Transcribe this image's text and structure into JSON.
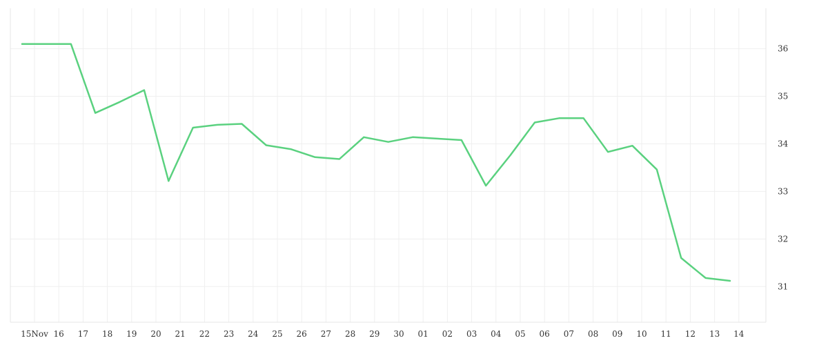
{
  "chart_data": {
    "type": "line",
    "title": "",
    "xlabel": "",
    "ylabel": "",
    "x_tick_labels": [
      "15Nov",
      "16",
      "17",
      "18",
      "19",
      "20",
      "21",
      "22",
      "23",
      "24",
      "25",
      "26",
      "27",
      "28",
      "29",
      "30",
      "01",
      "02",
      "03",
      "04",
      "05",
      "06",
      "07",
      "08",
      "09",
      "10",
      "11",
      "12",
      "13",
      "14"
    ],
    "y_ticks": [
      31,
      32,
      33,
      34,
      35,
      36
    ],
    "ylim": [
      30.25,
      36.85
    ],
    "grid": true,
    "legend": "none",
    "colors": {
      "line": "#5ad17f",
      "grid": "#efefef",
      "axis": "#e6e6e6",
      "text": "#333333"
    },
    "series": [
      {
        "values": [
          36.1,
          36.1,
          36.1,
          34.65,
          34.88,
          35.13,
          33.22,
          34.34,
          34.4,
          34.42,
          33.97,
          33.89,
          33.72,
          33.68,
          34.14,
          34.04,
          34.14,
          34.11,
          34.08,
          33.12,
          33.76,
          34.45,
          34.54,
          34.54,
          33.83,
          33.96,
          33.46,
          31.6,
          31.18,
          31.12
        ]
      }
    ]
  }
}
